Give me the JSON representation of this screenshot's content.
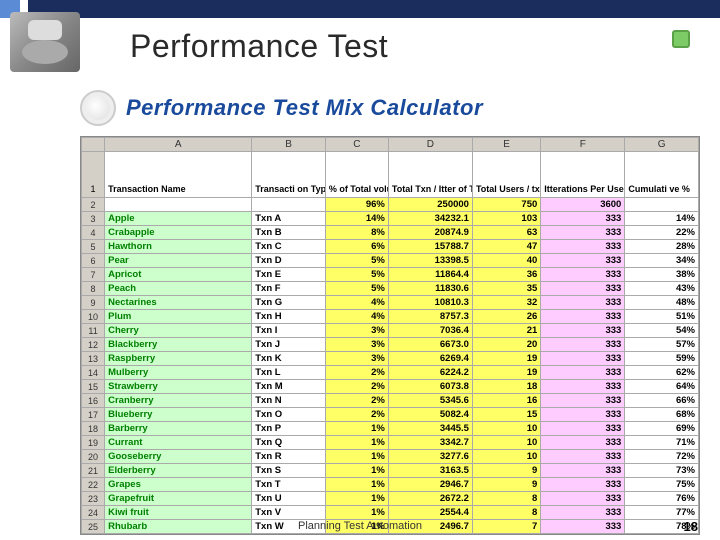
{
  "title": "Performance Test",
  "calc_title": "Performance Test Mix Calculator",
  "footer": "Planning Test Automation",
  "page_num": "18",
  "col_letters": [
    "",
    "A",
    "B",
    "C",
    "D",
    "E",
    "F",
    "G"
  ],
  "headers": {
    "name": "Transaction Name",
    "type": "Transacti on Type",
    "pct": "% of Total volume",
    "txn": "Total Txn / Itter of Txn",
    "users": "Total Users / txns per user",
    "iter": "Itterations Per User",
    "cum": "Cumulati ve %"
  },
  "summary": {
    "pct": "96%",
    "txn": "250000",
    "users": "750",
    "iter": "3600"
  },
  "rows": [
    {
      "n": "3",
      "name": "Apple",
      "type": "Txn A",
      "pct": "14%",
      "txn": "34232.1",
      "users": "103",
      "iter": "333",
      "cum": "14%"
    },
    {
      "n": "4",
      "name": "Crabapple",
      "type": "Txn B",
      "pct": "8%",
      "txn": "20874.9",
      "users": "63",
      "iter": "333",
      "cum": "22%"
    },
    {
      "n": "5",
      "name": "Hawthorn",
      "type": "Txn C",
      "pct": "6%",
      "txn": "15788.7",
      "users": "47",
      "iter": "333",
      "cum": "28%"
    },
    {
      "n": "6",
      "name": "Pear",
      "type": "Txn D",
      "pct": "5%",
      "txn": "13398.5",
      "users": "40",
      "iter": "333",
      "cum": "34%"
    },
    {
      "n": "7",
      "name": "Apricot",
      "type": "Txn E",
      "pct": "5%",
      "txn": "11864.4",
      "users": "36",
      "iter": "333",
      "cum": "38%"
    },
    {
      "n": "8",
      "name": "Peach",
      "type": "Txn F",
      "pct": "5%",
      "txn": "11830.6",
      "users": "35",
      "iter": "333",
      "cum": "43%"
    },
    {
      "n": "9",
      "name": "Nectarines",
      "type": "Txn G",
      "pct": "4%",
      "txn": "10810.3",
      "users": "32",
      "iter": "333",
      "cum": "48%"
    },
    {
      "n": "10",
      "name": "Plum",
      "type": "Txn H",
      "pct": "4%",
      "txn": "8757.3",
      "users": "26",
      "iter": "333",
      "cum": "51%"
    },
    {
      "n": "11",
      "name": "Cherry",
      "type": "Txn I",
      "pct": "3%",
      "txn": "7036.4",
      "users": "21",
      "iter": "333",
      "cum": "54%"
    },
    {
      "n": "12",
      "name": "Blackberry",
      "type": "Txn J",
      "pct": "3%",
      "txn": "6673.0",
      "users": "20",
      "iter": "333",
      "cum": "57%"
    },
    {
      "n": "13",
      "name": "Raspberry",
      "type": "Txn K",
      "pct": "3%",
      "txn": "6269.4",
      "users": "19",
      "iter": "333",
      "cum": "59%"
    },
    {
      "n": "14",
      "name": "Mulberry",
      "type": "Txn L",
      "pct": "2%",
      "txn": "6224.2",
      "users": "19",
      "iter": "333",
      "cum": "62%"
    },
    {
      "n": "15",
      "name": "Strawberry",
      "type": "Txn M",
      "pct": "2%",
      "txn": "6073.8",
      "users": "18",
      "iter": "333",
      "cum": "64%"
    },
    {
      "n": "16",
      "name": "Cranberry",
      "type": "Txn N",
      "pct": "2%",
      "txn": "5345.6",
      "users": "16",
      "iter": "333",
      "cum": "66%"
    },
    {
      "n": "17",
      "name": "Blueberry",
      "type": "Txn O",
      "pct": "2%",
      "txn": "5082.4",
      "users": "15",
      "iter": "333",
      "cum": "68%"
    },
    {
      "n": "18",
      "name": "Barberry",
      "type": "Txn P",
      "pct": "1%",
      "txn": "3445.5",
      "users": "10",
      "iter": "333",
      "cum": "69%"
    },
    {
      "n": "19",
      "name": "Currant",
      "type": "Txn Q",
      "pct": "1%",
      "txn": "3342.7",
      "users": "10",
      "iter": "333",
      "cum": "71%"
    },
    {
      "n": "20",
      "name": "Gooseberry",
      "type": "Txn R",
      "pct": "1%",
      "txn": "3277.6",
      "users": "10",
      "iter": "333",
      "cum": "72%"
    },
    {
      "n": "21",
      "name": "Elderberry",
      "type": "Txn S",
      "pct": "1%",
      "txn": "3163.5",
      "users": "9",
      "iter": "333",
      "cum": "73%"
    },
    {
      "n": "22",
      "name": "Grapes",
      "type": "Txn T",
      "pct": "1%",
      "txn": "2946.7",
      "users": "9",
      "iter": "333",
      "cum": "75%"
    },
    {
      "n": "23",
      "name": "Grapefruit",
      "type": "Txn U",
      "pct": "1%",
      "txn": "2672.2",
      "users": "8",
      "iter": "333",
      "cum": "76%"
    },
    {
      "n": "24",
      "name": "Kiwi fruit",
      "type": "Txn V",
      "pct": "1%",
      "txn": "2554.4",
      "users": "8",
      "iter": "333",
      "cum": "77%"
    },
    {
      "n": "25",
      "name": "Rhubarb",
      "type": "Txn W",
      "pct": "1%",
      "txn": "2496.7",
      "users": "7",
      "iter": "333",
      "cum": "78%"
    }
  ]
}
